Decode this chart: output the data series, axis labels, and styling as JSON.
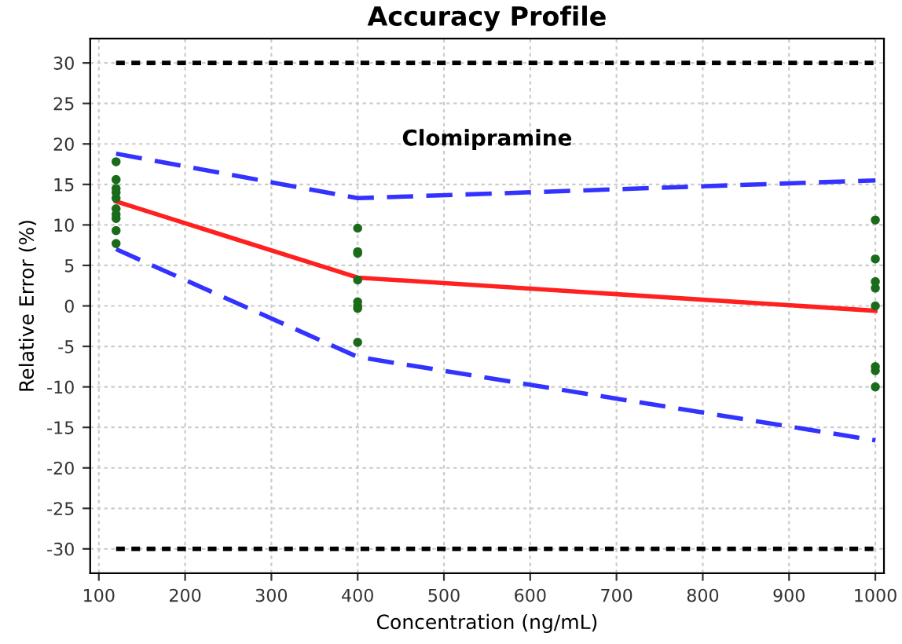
{
  "chart_data": {
    "type": "line",
    "title": "Accuracy Profile",
    "xlabel": "Concentration (ng/mL)",
    "ylabel": "Relative Error (%)",
    "annotations": [
      "Clomipramine"
    ],
    "xlim": [
      90,
      1010
    ],
    "ylim": [
      -33,
      33
    ],
    "xticks": [
      100,
      200,
      300,
      400,
      500,
      600,
      700,
      800,
      900,
      1000
    ],
    "yticks": [
      -30,
      -25,
      -20,
      -15,
      -10,
      -5,
      0,
      5,
      10,
      15,
      20,
      25,
      30
    ],
    "grid": true,
    "series": [
      {
        "color": "#000000",
        "line_style": "dotted",
        "x": [
          120,
          1000
        ],
        "values": [
          30,
          30
        ]
      },
      {
        "color": "#000000",
        "line_style": "dotted",
        "x": [
          120,
          1000
        ],
        "values": [
          -30,
          -30
        ]
      },
      {
        "color": "#3333ff",
        "line_style": "dashed",
        "x": [
          120,
          400,
          1000
        ],
        "values": [
          18.8,
          13.3,
          15.5
        ]
      },
      {
        "color": "#3333ff",
        "line_style": "dashed",
        "x": [
          120,
          400,
          1000
        ],
        "values": [
          7,
          -6.3,
          -16.6
        ]
      },
      {
        "color": "#ff2020",
        "line_style": "solid",
        "x": [
          120,
          400,
          1000
        ],
        "values": [
          12.9,
          3.5,
          -0.6
        ]
      },
      {
        "type": "scatter",
        "color": "#1a6b1a",
        "marker": "circle",
        "x": [
          120,
          120,
          120,
          120,
          120,
          120,
          120,
          120,
          120,
          120,
          400,
          400,
          400,
          400,
          400,
          400,
          400,
          400,
          1000,
          1000,
          1000,
          1000,
          1000,
          1000,
          1000,
          1000
        ],
        "values": [
          17.8,
          15.6,
          14.5,
          14,
          13.3,
          12,
          11.3,
          10.8,
          9.3,
          7.7,
          9.6,
          6.7,
          6.5,
          3.2,
          0.5,
          0,
          -0.3,
          -4.5,
          10.6,
          5.8,
          3,
          2.2,
          0,
          -7.5,
          -8,
          -10
        ]
      }
    ]
  }
}
